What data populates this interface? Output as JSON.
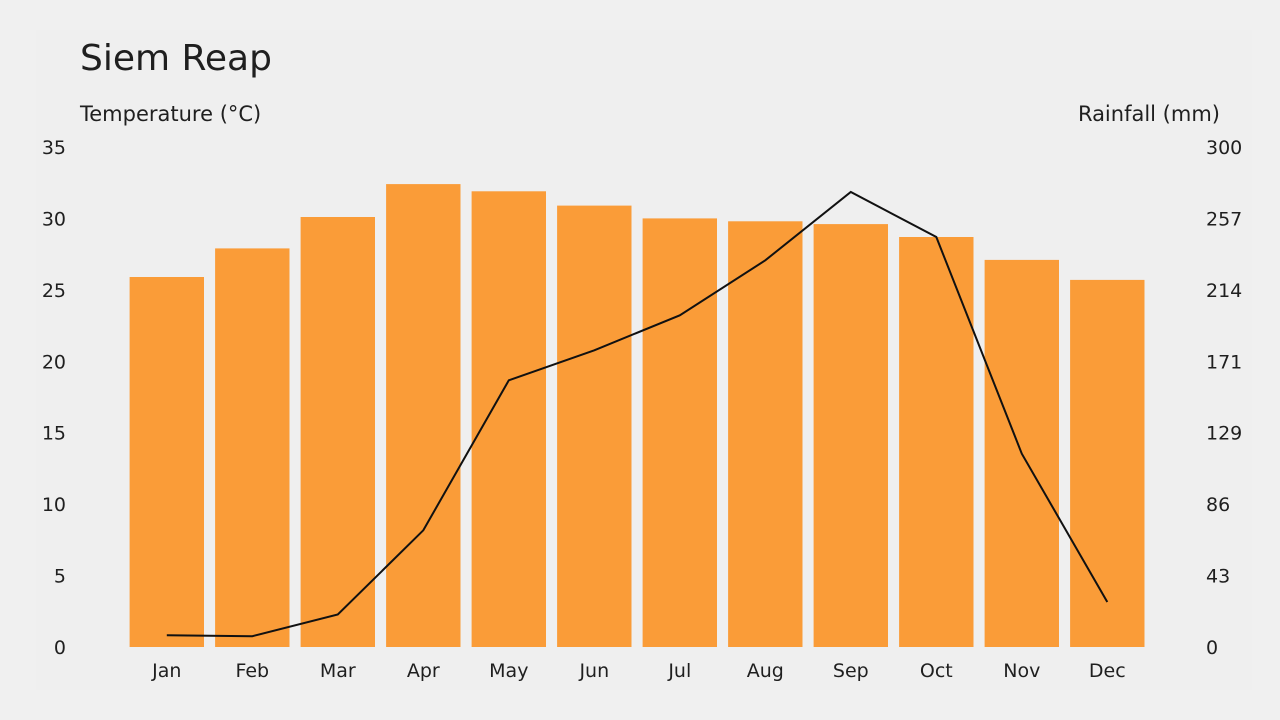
{
  "chart_data": {
    "type": "bar+line",
    "title": "Siem Reap",
    "categories": [
      "Jan",
      "Feb",
      "Mar",
      "Apr",
      "May",
      "Jun",
      "Jul",
      "Aug",
      "Sep",
      "Oct",
      "Nov",
      "Dec"
    ],
    "temperature": {
      "axis": "left",
      "ylabel": "Temperature (°C)",
      "ylim": [
        0,
        35
      ],
      "ticks": [
        0,
        5,
        10,
        15,
        20,
        25,
        30,
        35
      ],
      "values": [
        25.9,
        27.9,
        30.1,
        32.4,
        31.9,
        30.9,
        30.0,
        29.8,
        29.6,
        28.7,
        27.1,
        25.7
      ],
      "color": "#fa9c38"
    },
    "rainfall": {
      "axis": "right",
      "ylabel": "Rainfall (mm)",
      "ylim": [
        0,
        300
      ],
      "tick_labels": [
        "0",
        "43",
        "86",
        "129",
        "171",
        "214",
        "257",
        "300"
      ],
      "values": [
        7,
        6.5,
        19.5,
        70,
        160,
        178,
        199,
        232,
        273,
        246,
        116,
        27
      ],
      "color": "#111111"
    },
    "grid": false
  }
}
